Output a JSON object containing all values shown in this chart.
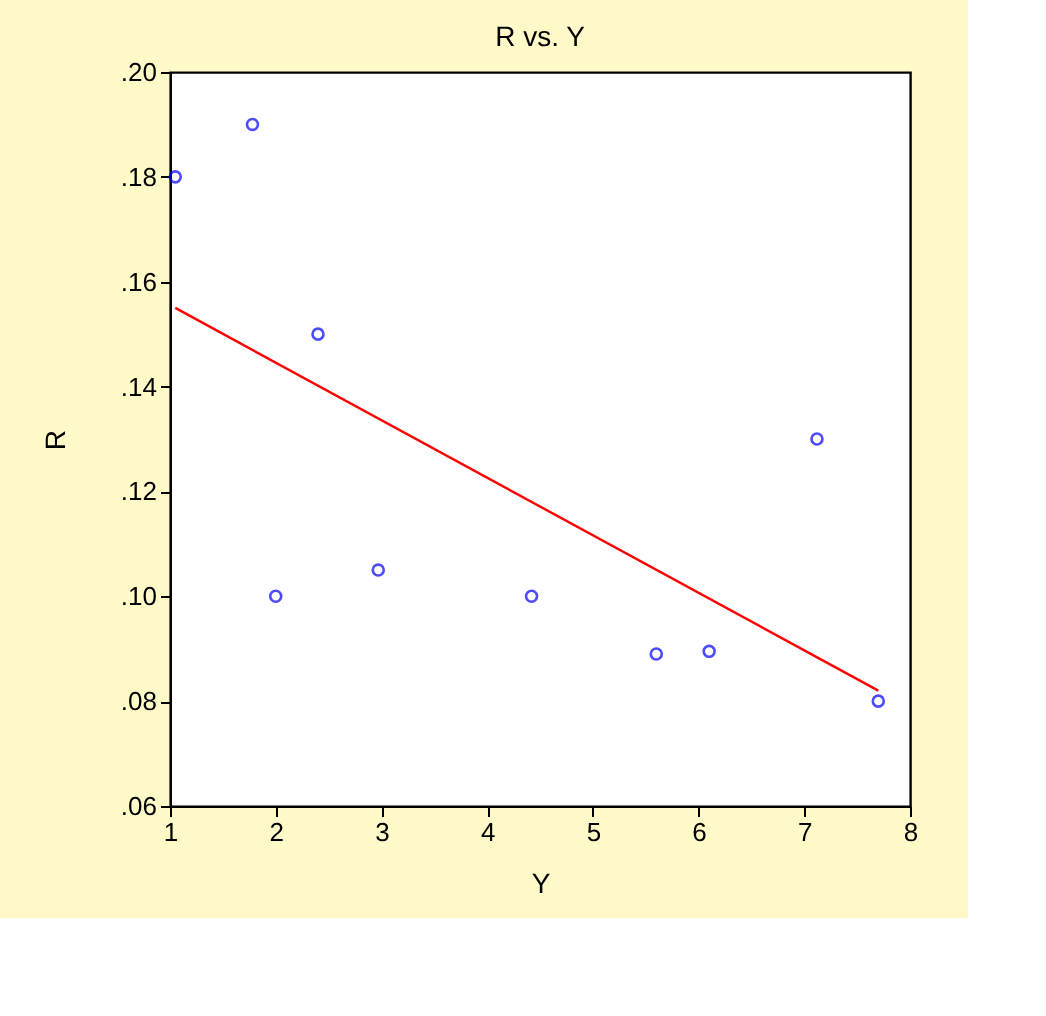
{
  "chart_data": {
    "type": "scatter",
    "title": "R vs. Y",
    "xlabel": "Y",
    "ylabel": "R",
    "xlim": [
      1,
      8
    ],
    "xticks": [
      1,
      2,
      3,
      4,
      5,
      6,
      7,
      8
    ],
    "ylim": [
      0.06,
      0.2
    ],
    "yticks": [
      {
        "value": 0.06,
        "label": ".06"
      },
      {
        "value": 0.08,
        "label": ".08"
      },
      {
        "value": 0.1,
        "label": ".10"
      },
      {
        "value": 0.12,
        "label": ".12"
      },
      {
        "value": 0.14,
        "label": ".14"
      },
      {
        "value": 0.16,
        "label": ".16"
      },
      {
        "value": 0.18,
        "label": ".18"
      },
      {
        "value": 0.2,
        "label": ".20"
      }
    ],
    "series": [
      {
        "color": "#0000ff",
        "marker": "circle",
        "x": [
          1.05,
          1.78,
          2.0,
          2.4,
          2.97,
          4.42,
          5.6,
          6.1,
          7.12,
          7.7
        ],
        "values": [
          0.18,
          0.19,
          0.1,
          0.15,
          0.105,
          0.1,
          0.089,
          0.0895,
          0.13,
          0.08
        ]
      },
      {
        "type": "line",
        "color": "#ff0000",
        "line_style": "solid",
        "x": [
          1.05,
          7.7
        ],
        "values": [
          0.155,
          0.082
        ]
      }
    ]
  }
}
